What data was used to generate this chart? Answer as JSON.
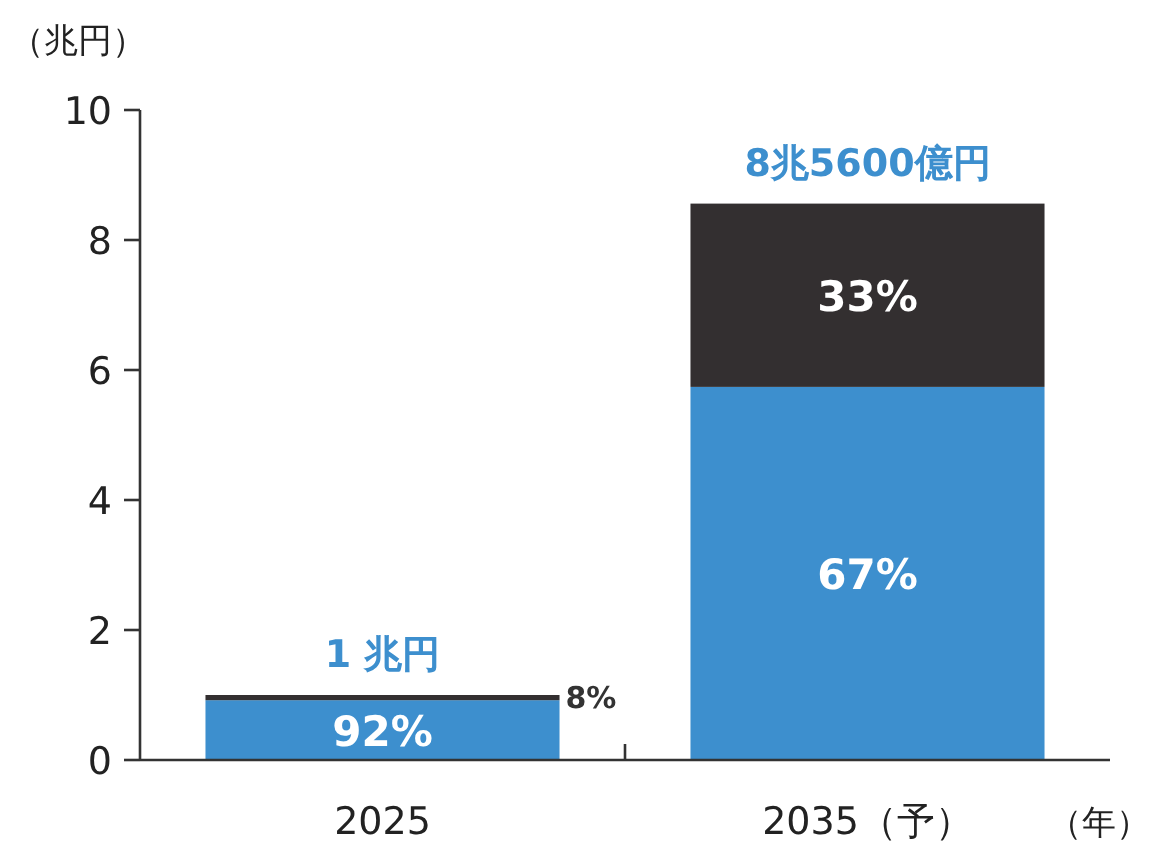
{
  "chart_data": {
    "type": "bar",
    "stacked": true,
    "ylabel": "（兆円）",
    "xlabel": "（年）",
    "categories": [
      "2025",
      "2035（予）"
    ],
    "series": [
      {
        "color": "#3d8fce",
        "values": [
          0.92,
          5.74
        ]
      },
      {
        "color": "#332f30",
        "values": [
          0.08,
          2.82
        ]
      }
    ],
    "annotations": [
      "92%",
      "8%",
      "67%",
      "33%"
    ],
    "totals": [
      "1 兆円",
      "8兆5600億円"
    ],
    "ylim": [
      0,
      10
    ],
    "yticks": [
      0,
      2,
      4,
      6,
      8,
      10
    ],
    "grid": false
  }
}
